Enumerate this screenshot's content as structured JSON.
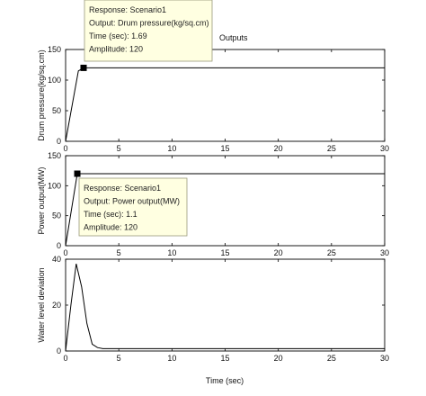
{
  "figure_title": "Outputs",
  "x_axis_label": "Time (sec)",
  "chart_data": [
    {
      "type": "line",
      "ylabel": "Drum pressure(kg/sq.cm)",
      "xlim": [
        0,
        30
      ],
      "ylim": [
        0,
        150
      ],
      "xticks": [
        "0",
        "5",
        "10",
        "15",
        "20",
        "25",
        "30"
      ],
      "yticks": [
        "0",
        "50",
        "100",
        "150"
      ],
      "series": [
        {
          "color": "#000000",
          "x": [
            0,
            1.2,
            1.69,
            30
          ],
          "y": [
            0,
            115,
            120,
            120
          ]
        }
      ],
      "marker": {
        "x": 1.69,
        "y": 120
      },
      "datatip": {
        "response": "Response: Scenario1",
        "output": "Output: Drum pressure(kg/sq.cm)",
        "time": "Time (sec): 1.69",
        "amplitude": "Amplitude: 120"
      }
    },
    {
      "type": "line",
      "ylabel": "Power output(MW)",
      "xlim": [
        0,
        30
      ],
      "ylim": [
        0,
        150
      ],
      "xticks": [
        "0",
        "5",
        "10",
        "15",
        "20",
        "25",
        "30"
      ],
      "yticks": [
        "0",
        "50",
        "100",
        "150"
      ],
      "series": [
        {
          "color": "#000000",
          "x": [
            0,
            1.1,
            30
          ],
          "y": [
            0,
            120,
            120
          ]
        }
      ],
      "marker": {
        "x": 1.1,
        "y": 120
      },
      "datatip": {
        "response": "Response: Scenario1",
        "output": "Output: Power output(MW)",
        "time": "Time (sec): 1.1",
        "amplitude": "Amplitude: 120"
      }
    },
    {
      "type": "line",
      "ylabel": "Water level deviation",
      "xlim": [
        0,
        30
      ],
      "ylim": [
        0,
        40
      ],
      "xticks": [
        "0",
        "5",
        "10",
        "15",
        "20",
        "25",
        "30"
      ],
      "yticks": [
        "0",
        "20",
        "40"
      ],
      "series": [
        {
          "color": "#000000",
          "x": [
            0,
            0.5,
            1,
            1.5,
            2,
            2.5,
            3,
            3.5,
            5,
            10,
            20,
            30
          ],
          "y": [
            0,
            20,
            38,
            28,
            12,
            3,
            1.5,
            1,
            1,
            1,
            1,
            1
          ]
        }
      ]
    }
  ]
}
